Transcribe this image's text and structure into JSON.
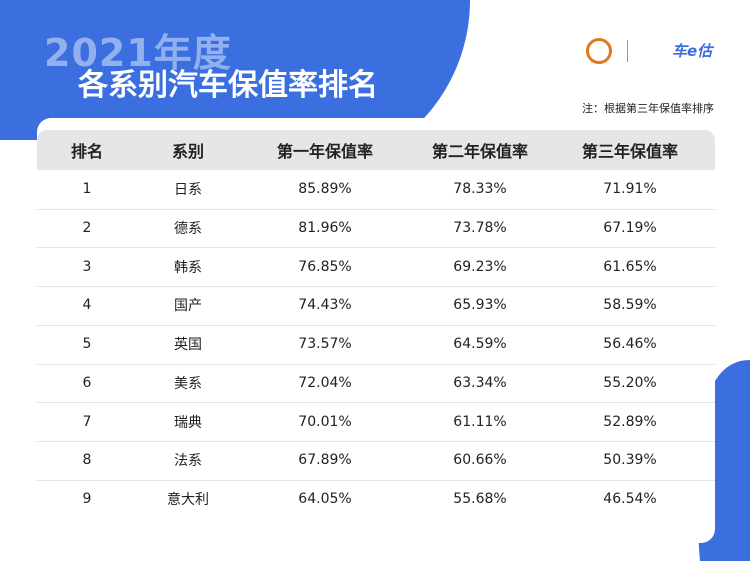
{
  "header": {
    "year": "2021年度",
    "title": "各系别汽车保值率排名",
    "logo": "车e估"
  },
  "note": "注：根据第三年保值率排序",
  "table": {
    "columns": [
      "排名",
      "系别",
      "第一年保值率",
      "第二年保值率",
      "第三年保值率"
    ],
    "rows": [
      [
        "1",
        "日系",
        "85.89%",
        "78.33%",
        "71.91%"
      ],
      [
        "2",
        "德系",
        "81.96%",
        "73.78%",
        "67.19%"
      ],
      [
        "3",
        "韩系",
        "76.85%",
        "69.23%",
        "61.65%"
      ],
      [
        "4",
        "国产",
        "74.43%",
        "65.93%",
        "58.59%"
      ],
      [
        "5",
        "英国",
        "73.57%",
        "64.59%",
        "56.46%"
      ],
      [
        "6",
        "美系",
        "72.04%",
        "63.34%",
        "55.20%"
      ],
      [
        "7",
        "瑞典",
        "70.01%",
        "61.11%",
        "52.89%"
      ],
      [
        "8",
        "法系",
        "67.89%",
        "60.66%",
        "50.39%"
      ],
      [
        "9",
        "意大利",
        "64.05%",
        "55.68%",
        "46.54%"
      ]
    ]
  }
}
